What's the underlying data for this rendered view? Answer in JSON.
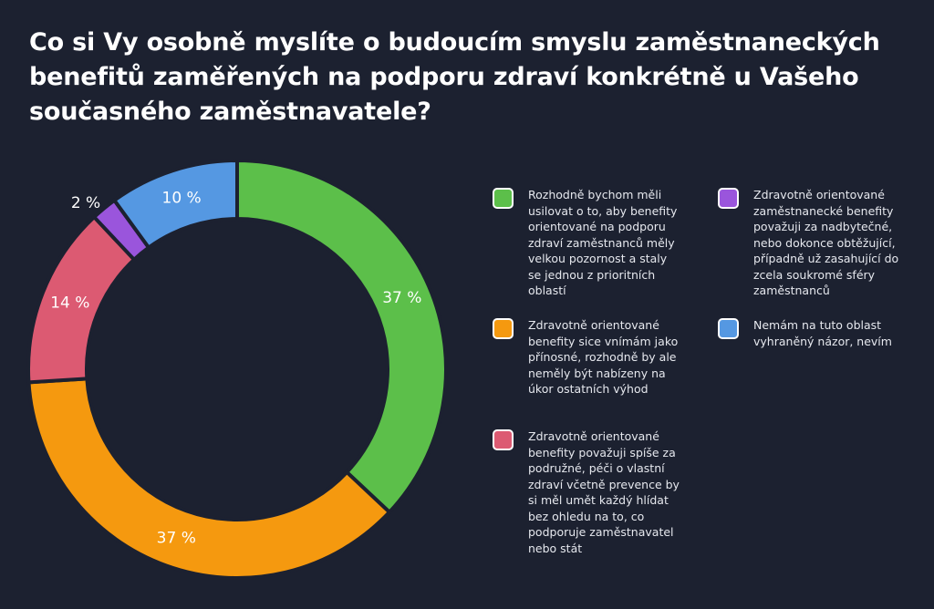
{
  "chart_data": {
    "type": "pie",
    "donut": true,
    "title": "Co si Vy osobně myslíte o budoucím smyslu zaměstnaneckých benefitů zaměřených na podporu zdraví konkrétně u Vašeho současného zaměstnavatele?",
    "slices": [
      {
        "label": "Rozhodně bychom měli usilovat o to, aby benefity orientované na podporu zdraví zaměstnanců měly velkou pozornost a staly se jednou z prioritních oblastí",
        "value": 37,
        "data_label": "37 %",
        "color": "#5cbf4a"
      },
      {
        "label": "Zdravotně orientované benefity sice vnímám jako přínosné, rozhodně by ale neměly být nabízeny na úkor ostatních výhod",
        "value": 37,
        "data_label": "37 %",
        "color": "#f5990f"
      },
      {
        "label": "Zdravotně orientované benefity považuji spíše za podružné, péči o vlastní zdraví včetně prevence by si měl umět každý hlídat bez ohledu na to, co podporuje zaměstnavatel nebo stát",
        "value": 14,
        "data_label": "14 %",
        "color": "#dc5a72"
      },
      {
        "label": "Zdravotně orientované zaměstnanecké benefity považuji za nadbytečné, nebo dokonce obtěžující, případně už zasahující do zcela soukromé sféry zaměstnanců",
        "value": 2,
        "data_label": "2 %",
        "color": "#9a55dc"
      },
      {
        "label": "Nemám na tuto oblast vyhraněný názor, nevím",
        "value": 10,
        "data_label": "10 %",
        "color": "#5598e2"
      }
    ],
    "legend_position": "right"
  }
}
